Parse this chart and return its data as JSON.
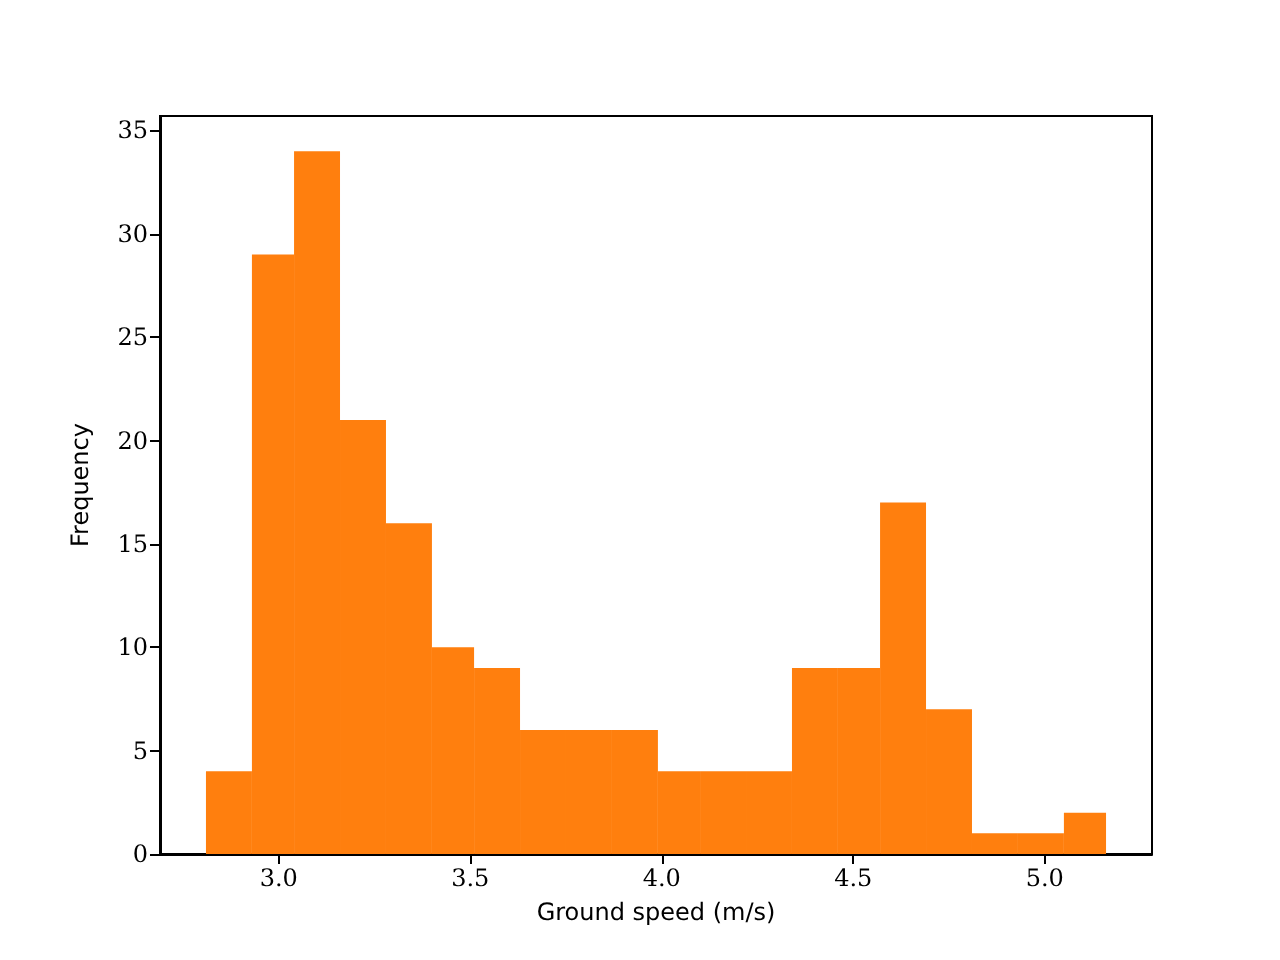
{
  "chart_data": {
    "type": "histogram",
    "xlabel": "Ground speed (m/s)",
    "ylabel": "Frequency",
    "color": "#ff7f0e",
    "bins": [
      2.81,
      2.93,
      3.04,
      3.16,
      3.28,
      3.4,
      3.51,
      3.63,
      3.75,
      3.87,
      3.99,
      4.1,
      4.22,
      4.34,
      4.46,
      4.57,
      4.69,
      4.81,
      4.93,
      5.05,
      5.16
    ],
    "values": [
      4,
      29,
      34,
      21,
      16,
      10,
      9,
      6,
      6,
      6,
      4,
      4,
      4,
      9,
      9,
      17,
      7,
      1,
      1,
      2
    ],
    "xlim": [
      2.69,
      5.28
    ],
    "ylim": [
      0,
      35.7
    ],
    "xticks": [
      {
        "value": 3,
        "label": "3.0"
      },
      {
        "value": 3.5,
        "label": "3.5"
      },
      {
        "value": 4,
        "label": "4.0"
      },
      {
        "value": 4.5,
        "label": "4.5"
      },
      {
        "value": 5,
        "label": "5.0"
      }
    ],
    "yticks": [
      0,
      5,
      10,
      15,
      20,
      25,
      30,
      35
    ]
  }
}
